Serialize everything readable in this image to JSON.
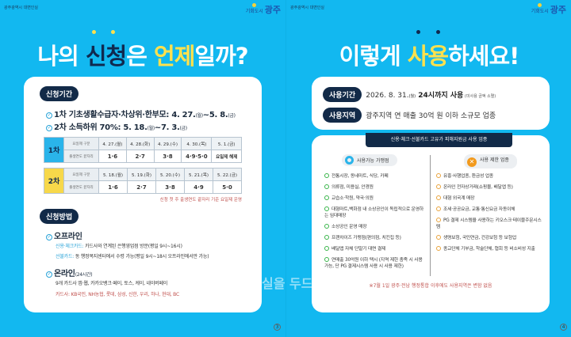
{
  "left": {
    "org": "광주광역시 대변인실",
    "logo": {
      "prefix": "기회도시",
      "name": "광주"
    },
    "title": {
      "p1": "나의 ",
      "p2": "신청",
      "p3": "은 ",
      "p4": "언제",
      "p5": "일까?"
    },
    "period": {
      "label": "신청기간",
      "lines": [
        {
          "text": "1차 기초생활수급자·차상위·한부모: 4. 27.",
          "d1": "(월)",
          "mid": "~5. 8.",
          "d2": "(금)"
        },
        {
          "text": "2차 소득하위 70%: 5. 18.",
          "d1": "(월)",
          "mid": "~7. 3.",
          "d2": "(금)"
        }
      ]
    },
    "tables": [
      {
        "round": "1차",
        "color": "#2ab4ea",
        "row_labels": [
          "요일제 구분",
          "출생연도 끝자리"
        ],
        "dates": [
          "4. 27.(월)",
          "4. 28.(화)",
          "4. 29.(수)",
          "4. 30.(목)",
          "5. 1.(금)"
        ],
        "digits": [
          "1·6",
          "2·7",
          "3·8",
          "4·9·5·0",
          "요일제 해제"
        ]
      },
      {
        "round": "2차",
        "color": "#f7d84a",
        "row_labels": [
          "요일제 구분",
          "출생연도 끝자리"
        ],
        "dates": [
          "5. 18.(월)",
          "5. 19.(화)",
          "5. 20.(수)",
          "5. 21.(목)",
          "5. 22.(금)"
        ],
        "digits": [
          "1·6",
          "2·7",
          "3·8",
          "4·9",
          "5·0"
        ]
      }
    ],
    "table_note": "신청 첫 주 출생연도 끝자리 기준 요일제 운영",
    "method": {
      "label": "신청방법",
      "offline": {
        "title": "오프라인",
        "l1k": "신용·체크카드:",
        "l1": " 카드사와 연계된 은행영업점 방문(평일 9시~16시)",
        "l2k": "선불카드:",
        "l2": " 동 행정복지센터에서 수령 가능(평일 9시~18시 오프라인에서만 가능)"
      },
      "online": {
        "title": "온라인",
        "sub": "(24시간)",
        "l1": "9개 카드사 앱·웹, 카카오뱅크·페이, 토스, 케이, 네이버페이",
        "l2": "카드사: KB국민, NH농협, 롯데, 삼성, 신한, 우리, 하나, 현대, BC"
      }
    },
    "page": "3"
  },
  "right": {
    "org": "광주광역시 대변인실",
    "logo": {
      "prefix": "기회도시",
      "name": "광주"
    },
    "title": {
      "p1": "이렇게 ",
      "p2": "사용",
      "p3": "하세요!"
    },
    "use_period": {
      "label": "사용기간",
      "text": "2026. 8. 31.",
      "day": "(월)",
      "bold": " 24시까지 사용",
      "note": " (미사용 금액 소멸)"
    },
    "use_area": {
      "label": "사용지역",
      "text": "광주지역 연 매출 30억 원 이하 소규모 업종"
    },
    "section_header": "신용·체크·선불카드 고유가 피해지원금 사용 업종",
    "allowed": {
      "title": "사용가능 가맹점",
      "items": [
        "전통시장, 동네마트, 식당, 카페",
        "의류점, 미용실, 안경원",
        "교습소·학원, 약국·의원",
        "대형마트,백화점 내 소상공인이 독립적으로 운영하는 임대매장",
        "소상공인 운영 매장",
        "프랜차이즈 가맹점(편의점, 치킨집 등)",
        "배달앱 자체 단말기 대면 결제",
        "연매출 30억원 이하 택시 (지역 제한 충족 시 사용 가능, 단 PG 결제시스템 사용 시 사용 제한)"
      ]
    },
    "restricted": {
      "title": "사용 제한 업종",
      "items": [
        "유흥·사행업종, 환금성 업종",
        "온라인 전자상거래(쇼핑몰, 배달앱 등)",
        "대형 외국계 매장",
        "조세·공공요금, 교통·통신요금 자동이체",
        "PG 결제 시스템을 사용하는 키오스크·테이블주문시스템",
        "생명보험, 국민연금, 건강보험 등 보험업",
        "종교단체 기부금, 학술단체, 협회 등 비소비성 지출"
      ]
    },
    "footnote": "※7월 1일 광주·전남 행정통합 이후에도 사용지역은 변함 없음",
    "page": "4"
  },
  "watermark": "실을 두드리는 저널",
  "colors": {
    "background": "#12b8f0",
    "navy": "#122a48",
    "yellow": "#ffe14d",
    "accent_blue": "#2aa3d8",
    "note_red": "#c0504d"
  }
}
